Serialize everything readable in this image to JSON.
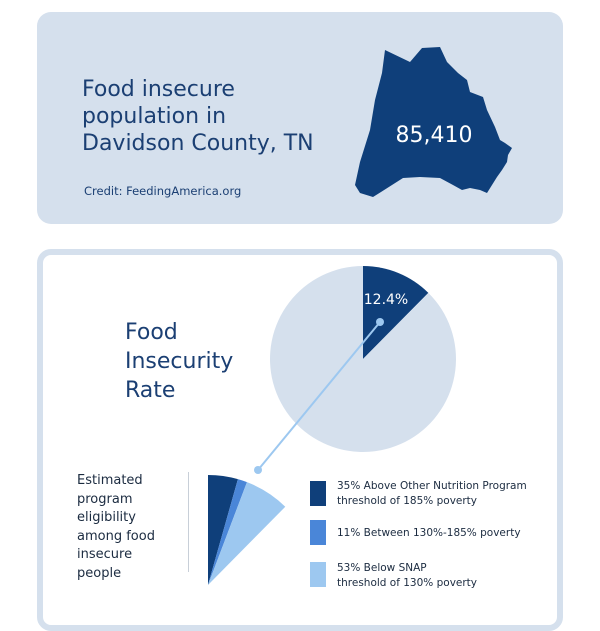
{
  "header": {
    "title": "Food insecure population in Davidson County, TN",
    "population": "85,410",
    "credit": "Credit: FeedingAmerica.org",
    "map_icon": "davidson-county-map"
  },
  "colors": {
    "dark": "#0f3f7a",
    "mid": "#4a86d8",
    "light": "#9dc8f0",
    "pie_bg": "#d5e0ed"
  },
  "chart_data": [
    {
      "type": "pie",
      "title": "Food Insecurity Rate",
      "values": [
        12.4,
        87.6
      ],
      "data_labels": [
        "12.4%",
        ""
      ]
    },
    {
      "type": "pie",
      "title": "Estimated program eligibility among food insecure people",
      "categories": [
        "Above Other Nutrition Program threshold of 185% poverty",
        "Between 130%-185% poverty",
        "Below SNAP threshold of 130% poverty"
      ],
      "values": [
        35,
        11,
        53
      ],
      "legend": [
        "35% Above Other Nutrition Program threshold of 185% poverty",
        "11% Between 130%-185% poverty",
        "53% Below SNAP threshold of 130% poverty"
      ],
      "legend_position": "right"
    }
  ]
}
